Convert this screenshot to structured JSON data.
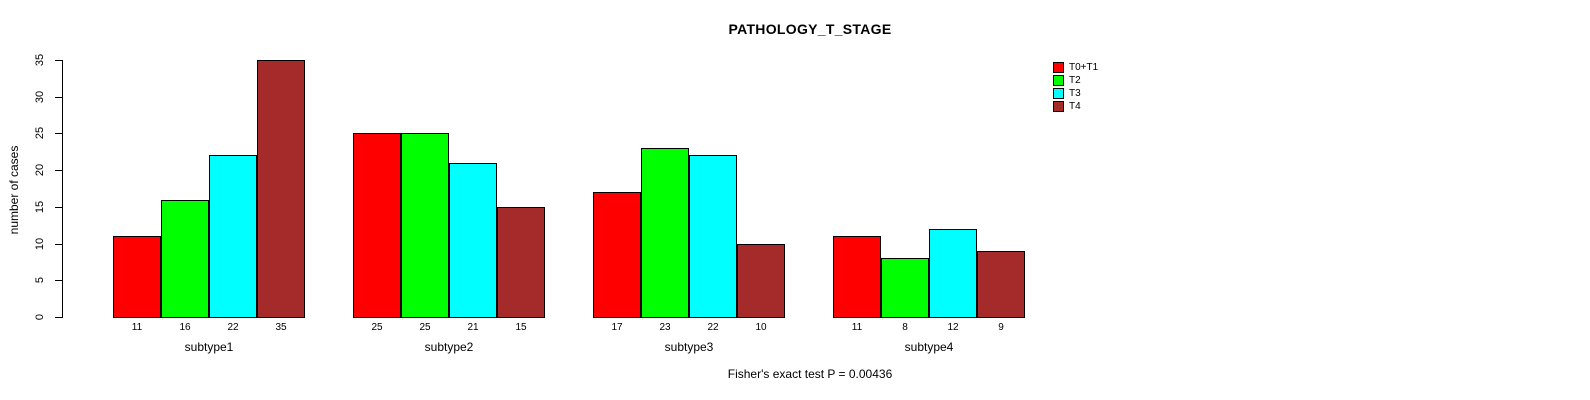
{
  "chart_data": {
    "type": "bar",
    "title": "PATHOLOGY_T_STAGE",
    "xlabel": "",
    "ylabel": "number of cases",
    "ylim": [
      0,
      35
    ],
    "yticks": [
      0,
      5,
      10,
      15,
      20,
      25,
      30,
      35
    ],
    "grid": false,
    "legend_position": "right",
    "categories": [
      "subtype1",
      "subtype2",
      "subtype3",
      "subtype4"
    ],
    "series": [
      {
        "name": "T0+T1",
        "color": "#FF0000",
        "values": [
          11,
          25,
          17,
          11
        ]
      },
      {
        "name": "T2",
        "color": "#00FF00",
        "values": [
          16,
          25,
          23,
          8
        ]
      },
      {
        "name": "T3",
        "color": "#00FFFF",
        "values": [
          22,
          21,
          22,
          12
        ]
      },
      {
        "name": "T4",
        "color": "#A52A2A",
        "values": [
          35,
          15,
          10,
          9
        ]
      }
    ],
    "bar_labels": true,
    "caption": "Fisher's exact test P = 0.00436"
  }
}
